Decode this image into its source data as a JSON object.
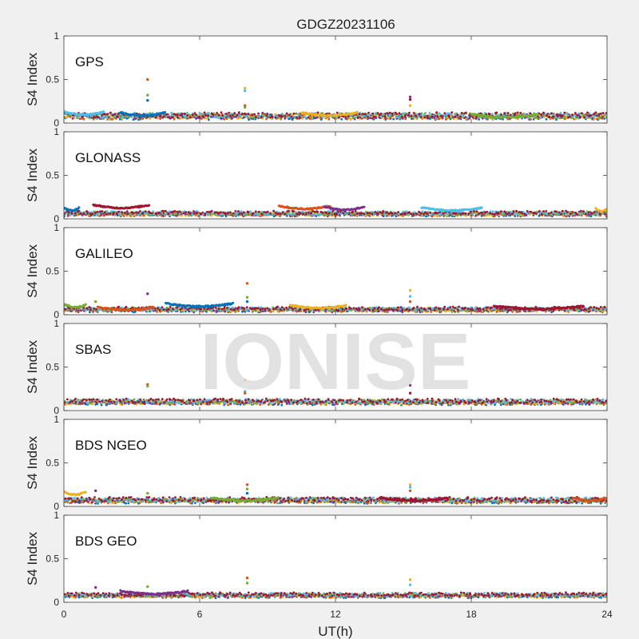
{
  "figure": {
    "title": "GDGZ20231106",
    "watermark": "IONISE",
    "background": "#f0f0f0",
    "axes_background": "#ffffff",
    "axis_color": "#404040",
    "watermark_color": "#d9d9d9"
  },
  "chart_data": {
    "type": "scatter",
    "title": "GDGZ20231106",
    "xlabel": "UT(h)",
    "ylabel": "S4 Index",
    "xlim": [
      0,
      24
    ],
    "ylim": [
      0,
      1
    ],
    "xticks": [
      0,
      6,
      12,
      18,
      24
    ],
    "yticks": [
      0,
      0.5,
      1
    ],
    "xtick_labels": [
      "0",
      "6",
      "12",
      "18",
      "24"
    ],
    "ytick_labels": [
      "0",
      "0.5",
      "1"
    ],
    "grid": false,
    "shared_x_axis": true,
    "series_colors": [
      "#0072BD",
      "#D95319",
      "#EDB120",
      "#7E2F8E",
      "#77AC30",
      "#4DBEEE",
      "#A2142F"
    ],
    "panels": [
      {
        "label": "GPS",
        "baseline": 0.08,
        "spread": 0.06,
        "spikes": [
          {
            "x": 3.7,
            "values": [
              0.5,
              0.32,
              0.26
            ]
          },
          {
            "x": 8.0,
            "values": [
              0.4,
              0.37,
              0.2,
              0.18
            ]
          },
          {
            "x": 15.3,
            "values": [
              0.3,
              0.27,
              0.2
            ]
          }
        ],
        "arcs": [
          {
            "x0": 0.0,
            "x1": 1.8,
            "y": 0.13
          },
          {
            "x0": 2.5,
            "x1": 4.5,
            "y": 0.12
          },
          {
            "x0": 10.5,
            "x1": 13.0,
            "y": 0.12
          },
          {
            "x0": 18.0,
            "x1": 21.0,
            "y": 0.1
          }
        ]
      },
      {
        "label": "GLONASS",
        "baseline": 0.06,
        "spread": 0.04,
        "spikes": [],
        "arcs": [
          {
            "x0": 1.3,
            "x1": 3.8,
            "y": 0.16
          },
          {
            "x0": 9.5,
            "x1": 11.8,
            "y": 0.15
          },
          {
            "x0": 11.5,
            "x1": 13.3,
            "y": 0.14
          },
          {
            "x0": 15.8,
            "x1": 18.5,
            "y": 0.13
          },
          {
            "x0": 0.0,
            "x1": 0.7,
            "y": 0.13
          },
          {
            "x0": 23.5,
            "x1": 24.0,
            "y": 0.12
          }
        ]
      },
      {
        "label": "GALILEO",
        "baseline": 0.06,
        "spread": 0.04,
        "spikes": [
          {
            "x": 8.1,
            "values": [
              0.36,
              0.2,
              0.15
            ]
          },
          {
            "x": 15.3,
            "values": [
              0.28,
              0.21,
              0.15
            ]
          },
          {
            "x": 3.7,
            "values": [
              0.24
            ]
          },
          {
            "x": 1.4,
            "values": [
              0.15
            ]
          }
        ],
        "arcs": [
          {
            "x0": 4.5,
            "x1": 7.5,
            "y": 0.13
          },
          {
            "x0": 10.0,
            "x1": 12.5,
            "y": 0.11
          },
          {
            "x0": 0.0,
            "x1": 1.0,
            "y": 0.12
          },
          {
            "x0": 19.0,
            "x1": 23.0,
            "y": 0.1
          },
          {
            "x0": 1.5,
            "x1": 4.0,
            "y": 0.09
          }
        ]
      },
      {
        "label": "SBAS",
        "baseline": 0.1,
        "spread": 0.05,
        "spikes": [
          {
            "x": 3.7,
            "values": [
              0.3,
              0.28
            ]
          },
          {
            "x": 8.0,
            "values": [
              0.35,
              0.22,
              0.2
            ]
          },
          {
            "x": 15.3,
            "values": [
              0.29,
              0.2
            ]
          }
        ],
        "arcs": []
      },
      {
        "label": "BDS NGEO",
        "baseline": 0.07,
        "spread": 0.05,
        "spikes": [
          {
            "x": 8.1,
            "values": [
              0.25,
              0.2,
              0.15
            ]
          },
          {
            "x": 15.3,
            "values": [
              0.25,
              0.22,
              0.18
            ]
          },
          {
            "x": 1.4,
            "values": [
              0.18
            ]
          },
          {
            "x": 3.7,
            "values": [
              0.15
            ]
          }
        ],
        "arcs": [
          {
            "x0": 0.0,
            "x1": 1.0,
            "y": 0.17
          },
          {
            "x0": 6.5,
            "x1": 9.5,
            "y": 0.1
          },
          {
            "x0": 14.0,
            "x1": 17.0,
            "y": 0.1
          },
          {
            "x0": 22.5,
            "x1": 24.0,
            "y": 0.1
          }
        ]
      },
      {
        "label": "BDS GEO",
        "baseline": 0.08,
        "spread": 0.04,
        "spikes": [
          {
            "x": 8.1,
            "values": [
              0.28,
              0.22
            ]
          },
          {
            "x": 15.3,
            "values": [
              0.26,
              0.2
            ]
          },
          {
            "x": 1.4,
            "values": [
              0.17
            ]
          },
          {
            "x": 3.7,
            "values": [
              0.18
            ]
          }
        ],
        "arcs": [
          {
            "x0": 2.5,
            "x1": 5.5,
            "y": 0.13
          }
        ]
      }
    ]
  }
}
